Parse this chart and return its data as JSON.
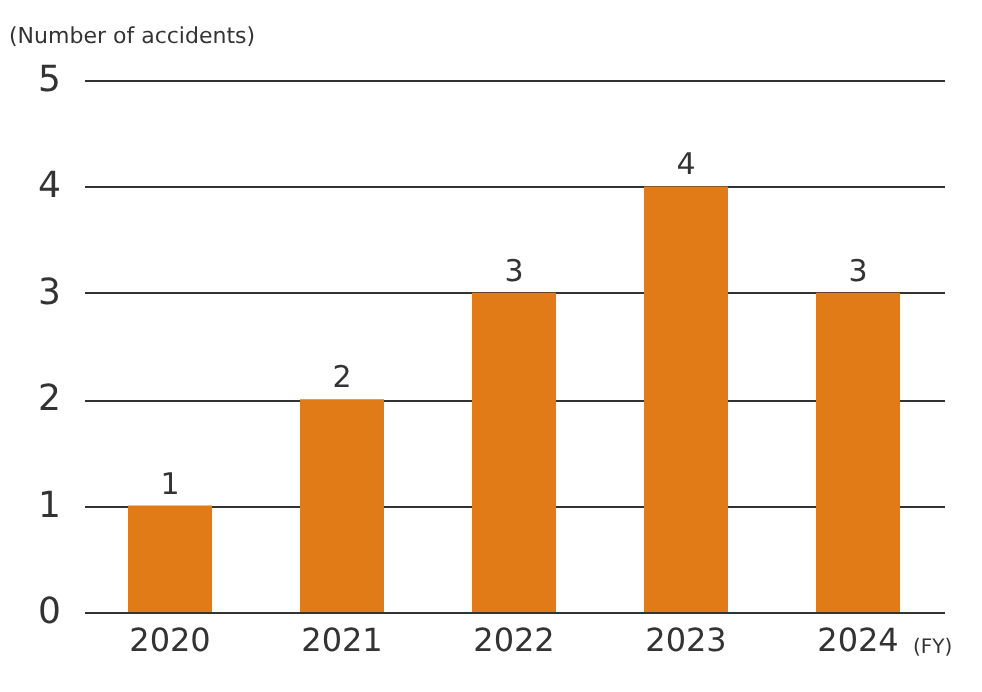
{
  "chart_data": {
    "type": "bar",
    "ylabel": "(Number of accidents)",
    "xlabel": "(FY)",
    "categories": [
      "2020",
      "2021",
      "2022",
      "2023",
      "2024"
    ],
    "values": [
      1,
      2,
      3,
      4,
      3
    ],
    "color": "#e07b17",
    "ylim": [
      0,
      5
    ],
    "yticks": [
      0,
      1,
      2,
      3,
      4,
      5
    ],
    "grid": "y",
    "data_labels": true
  }
}
